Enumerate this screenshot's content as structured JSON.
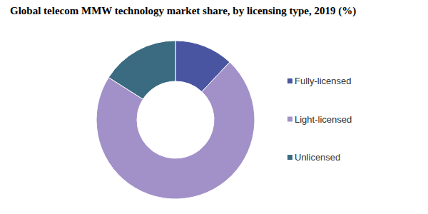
{
  "chart_data": {
    "type": "donut",
    "title": "Global telecom MMW technology market share, by licensing type, 2019 (%)",
    "categories": [
      "Fully-licensed",
      "Light-licensed",
      "Unlicensed"
    ],
    "values": [
      12,
      72,
      16
    ],
    "colors": [
      "#4a55a2",
      "#a291c8",
      "#3a6b80"
    ],
    "legend": "right"
  }
}
